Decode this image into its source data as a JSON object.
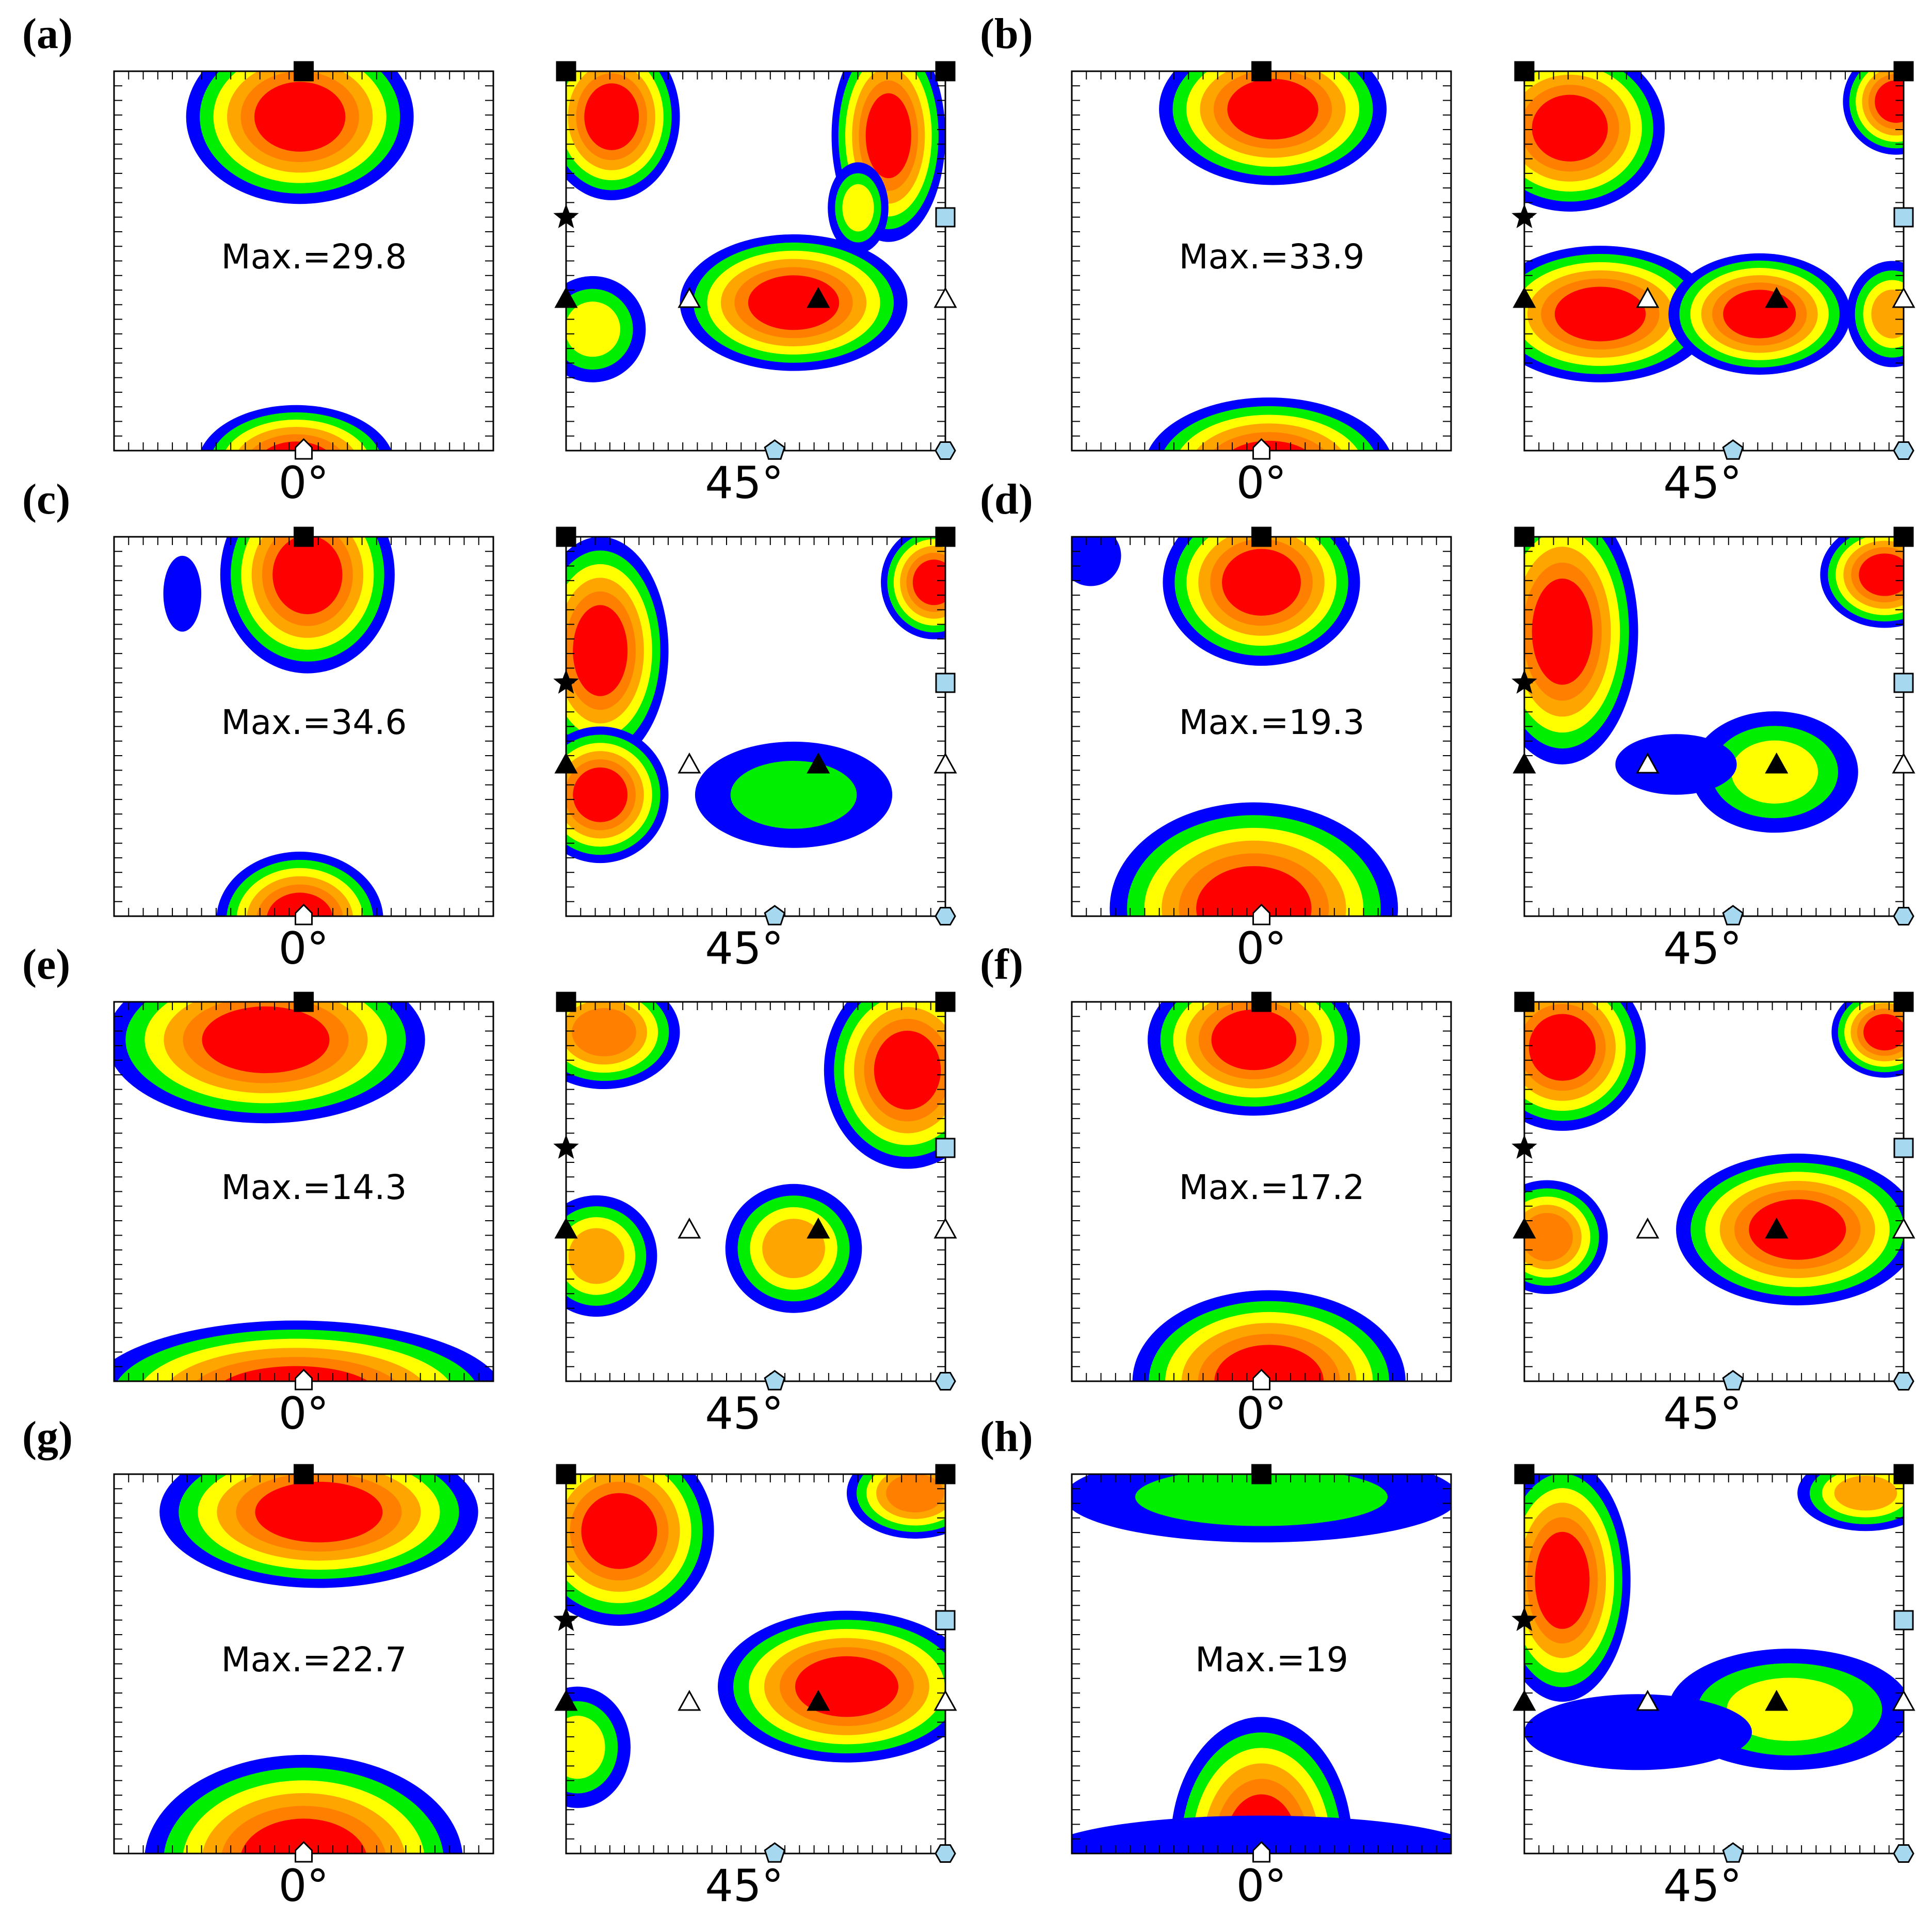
{
  "chart_data": {
    "type": "heatmap",
    "description_kind": "ODF phi2 sections, contour maps",
    "colors": {
      "level1": "#0000ff",
      "level2": "#00ee00",
      "level3": "#ffff00",
      "level4": "#ffa500",
      "level5": "#ff7f00",
      "level6": "#ff0000",
      "marker_fill_light": "#a6d8f0"
    },
    "sections": [
      "0°",
      "45°"
    ],
    "panels": [
      {
        "label": "(a)",
        "max": "Max.=29.8",
        "left": [
          {
            "cx": 0.49,
            "cy": 0.12,
            "rx": 0.3,
            "ry": 0.23,
            "levels": 6
          },
          {
            "cx": 0.48,
            "cy": 1.04,
            "rx": 0.26,
            "ry": 0.16,
            "levels": 6
          }
        ],
        "right": [
          {
            "cx": 0.12,
            "cy": 0.12,
            "rx": 0.18,
            "ry": 0.22,
            "levels": 6
          },
          {
            "cx": 0.85,
            "cy": 0.17,
            "rx": 0.15,
            "ry": 0.28,
            "levels": 6
          },
          {
            "cx": 0.6,
            "cy": 0.61,
            "rx": 0.3,
            "ry": 0.18,
            "levels": 6
          },
          {
            "cx": 0.07,
            "cy": 0.68,
            "rx": 0.14,
            "ry": 0.14,
            "levels": 3
          },
          {
            "cx": 0.77,
            "cy": 0.36,
            "rx": 0.08,
            "ry": 0.12,
            "levels": 3
          }
        ]
      },
      {
        "label": "(b)",
        "max": "Max.=33.9",
        "left": [
          {
            "cx": 0.53,
            "cy": 0.1,
            "rx": 0.3,
            "ry": 0.2,
            "levels": 6
          },
          {
            "cx": 0.52,
            "cy": 1.05,
            "rx": 0.33,
            "ry": 0.19,
            "levels": 6
          }
        ],
        "right": [
          {
            "cx": 0.12,
            "cy": 0.15,
            "rx": 0.25,
            "ry": 0.22,
            "levels": 6
          },
          {
            "cx": 0.98,
            "cy": 0.08,
            "rx": 0.14,
            "ry": 0.14,
            "levels": 6
          },
          {
            "cx": 0.2,
            "cy": 0.64,
            "rx": 0.3,
            "ry": 0.18,
            "levels": 6
          },
          {
            "cx": 0.62,
            "cy": 0.64,
            "rx": 0.24,
            "ry": 0.16,
            "levels": 6
          },
          {
            "cx": 0.97,
            "cy": 0.64,
            "rx": 0.12,
            "ry": 0.14,
            "levels": 4
          }
        ]
      },
      {
        "label": "(c)",
        "max": "Max.=34.6",
        "left": [
          {
            "cx": 0.51,
            "cy": 0.1,
            "rx": 0.23,
            "ry": 0.26,
            "levels": 6
          },
          {
            "cx": 0.49,
            "cy": 1.01,
            "rx": 0.22,
            "ry": 0.18,
            "levels": 6
          },
          {
            "cx": 0.18,
            "cy": 0.15,
            "rx": 0.05,
            "ry": 0.1,
            "levels": 1
          }
        ],
        "right": [
          {
            "cx": 0.09,
            "cy": 0.3,
            "rx": 0.18,
            "ry": 0.3,
            "levels": 6
          },
          {
            "cx": 0.09,
            "cy": 0.68,
            "rx": 0.18,
            "ry": 0.18,
            "levels": 6
          },
          {
            "cx": 0.97,
            "cy": 0.12,
            "rx": 0.14,
            "ry": 0.15,
            "levels": 6
          },
          {
            "cx": 0.6,
            "cy": 0.68,
            "rx": 0.26,
            "ry": 0.14,
            "levels": 2
          }
        ]
      },
      {
        "label": "(d)",
        "max": "Max.=19.3",
        "left": [
          {
            "cx": 0.5,
            "cy": 0.12,
            "rx": 0.26,
            "ry": 0.22,
            "levels": 6
          },
          {
            "cx": 0.48,
            "cy": 0.98,
            "rx": 0.38,
            "ry": 0.28,
            "levels": 6
          },
          {
            "cx": 0.05,
            "cy": 0.05,
            "rx": 0.08,
            "ry": 0.08,
            "levels": 1
          }
        ],
        "right": [
          {
            "cx": 0.1,
            "cy": 0.25,
            "rx": 0.2,
            "ry": 0.35,
            "levels": 6
          },
          {
            "cx": 0.95,
            "cy": 0.1,
            "rx": 0.17,
            "ry": 0.14,
            "levels": 6
          },
          {
            "cx": 0.66,
            "cy": 0.62,
            "rx": 0.22,
            "ry": 0.16,
            "levels": 3
          },
          {
            "cx": 0.4,
            "cy": 0.6,
            "rx": 0.16,
            "ry": 0.08,
            "levels": 1
          }
        ]
      },
      {
        "label": "(e)",
        "max": "Max.=14.3",
        "left": [
          {
            "cx": 0.4,
            "cy": 0.1,
            "rx": 0.42,
            "ry": 0.22,
            "levels": 6
          },
          {
            "cx": 0.48,
            "cy": 1.04,
            "rx": 0.55,
            "ry": 0.2,
            "levels": 6
          }
        ],
        "right": [
          {
            "cx": 0.1,
            "cy": 0.08,
            "rx": 0.2,
            "ry": 0.15,
            "levels": 5
          },
          {
            "cx": 0.9,
            "cy": 0.18,
            "rx": 0.22,
            "ry": 0.26,
            "levels": 6
          },
          {
            "cx": 0.08,
            "cy": 0.67,
            "rx": 0.16,
            "ry": 0.16,
            "levels": 4
          },
          {
            "cx": 0.6,
            "cy": 0.65,
            "rx": 0.18,
            "ry": 0.17,
            "levels": 4
          }
        ]
      },
      {
        "label": "(f)",
        "max": "Max.=17.2",
        "left": [
          {
            "cx": 0.48,
            "cy": 0.1,
            "rx": 0.28,
            "ry": 0.2,
            "levels": 6
          },
          {
            "cx": 0.52,
            "cy": 1.0,
            "rx": 0.36,
            "ry": 0.24,
            "levels": 6
          }
        ],
        "right": [
          {
            "cx": 0.1,
            "cy": 0.12,
            "rx": 0.22,
            "ry": 0.22,
            "levels": 6
          },
          {
            "cx": 0.95,
            "cy": 0.08,
            "rx": 0.14,
            "ry": 0.12,
            "levels": 6
          },
          {
            "cx": 0.06,
            "cy": 0.62,
            "rx": 0.16,
            "ry": 0.15,
            "levels": 5
          },
          {
            "cx": 0.72,
            "cy": 0.6,
            "rx": 0.32,
            "ry": 0.2,
            "levels": 6
          }
        ]
      },
      {
        "label": "(g)",
        "max": "Max.=22.7",
        "left": [
          {
            "cx": 0.54,
            "cy": 0.1,
            "rx": 0.42,
            "ry": 0.2,
            "levels": 6
          },
          {
            "cx": 0.5,
            "cy": 1.02,
            "rx": 0.42,
            "ry": 0.28,
            "levels": 6
          }
        ],
        "right": [
          {
            "cx": 0.14,
            "cy": 0.15,
            "rx": 0.25,
            "ry": 0.25,
            "levels": 6
          },
          {
            "cx": 0.92,
            "cy": 0.05,
            "rx": 0.18,
            "ry": 0.12,
            "levels": 5
          },
          {
            "cx": 0.74,
            "cy": 0.56,
            "rx": 0.34,
            "ry": 0.2,
            "levels": 6
          },
          {
            "cx": 0.03,
            "cy": 0.72,
            "rx": 0.14,
            "ry": 0.16,
            "levels": 3
          }
        ]
      },
      {
        "label": "(h)",
        "max": "Max.=19",
        "left": [
          {
            "cx": 0.5,
            "cy": 0.06,
            "rx": 0.52,
            "ry": 0.12,
            "levels": 2
          },
          {
            "cx": 0.5,
            "cy": 0.98,
            "rx": 0.24,
            "ry": 0.34,
            "levels": 6
          },
          {
            "cx": 0.5,
            "cy": 1.0,
            "rx": 0.58,
            "ry": 0.1,
            "levels": 1
          }
        ],
        "right": [
          {
            "cx": 0.1,
            "cy": 0.28,
            "rx": 0.18,
            "ry": 0.32,
            "levels": 6
          },
          {
            "cx": 0.9,
            "cy": 0.05,
            "rx": 0.18,
            "ry": 0.1,
            "levels": 4
          },
          {
            "cx": 0.7,
            "cy": 0.62,
            "rx": 0.32,
            "ry": 0.16,
            "levels": 3
          },
          {
            "cx": 0.3,
            "cy": 0.68,
            "rx": 0.3,
            "ry": 0.1,
            "levels": 1
          }
        ]
      }
    ]
  }
}
